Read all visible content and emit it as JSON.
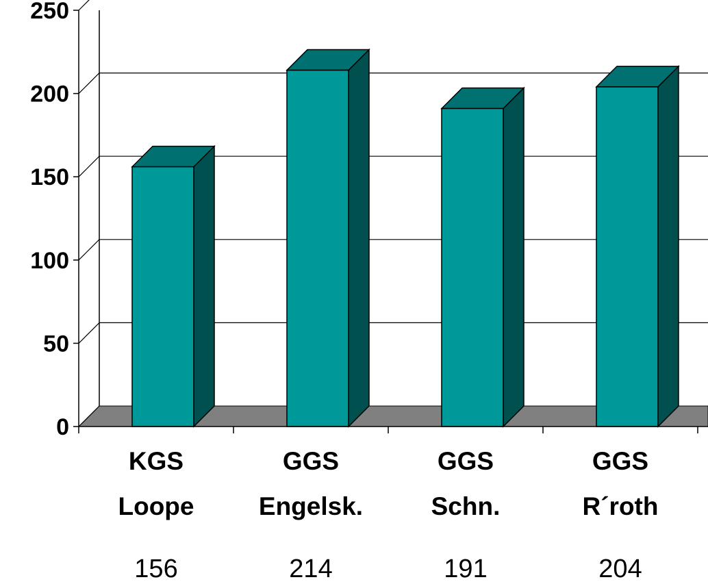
{
  "chart_data": {
    "type": "bar",
    "style": "3d-column",
    "categories": [
      [
        "KGS",
        "Loope"
      ],
      [
        "GGS",
        "Engelsk."
      ],
      [
        "GGS",
        "Schn."
      ],
      [
        "GGS",
        "R´roth"
      ]
    ],
    "values": [
      156,
      214,
      191,
      204
    ],
    "data_labels": [
      "156",
      "214",
      "191",
      "204"
    ],
    "ylim": [
      0,
      250
    ],
    "yticks": [
      "0",
      "50",
      "100",
      "150",
      "200",
      "250"
    ],
    "grid": true,
    "legend": "none",
    "colors": {
      "bar_front": "#009999",
      "bar_side": "#005050",
      "bar_top": "#007070",
      "floor": "#808080",
      "grid": "#000000"
    }
  }
}
